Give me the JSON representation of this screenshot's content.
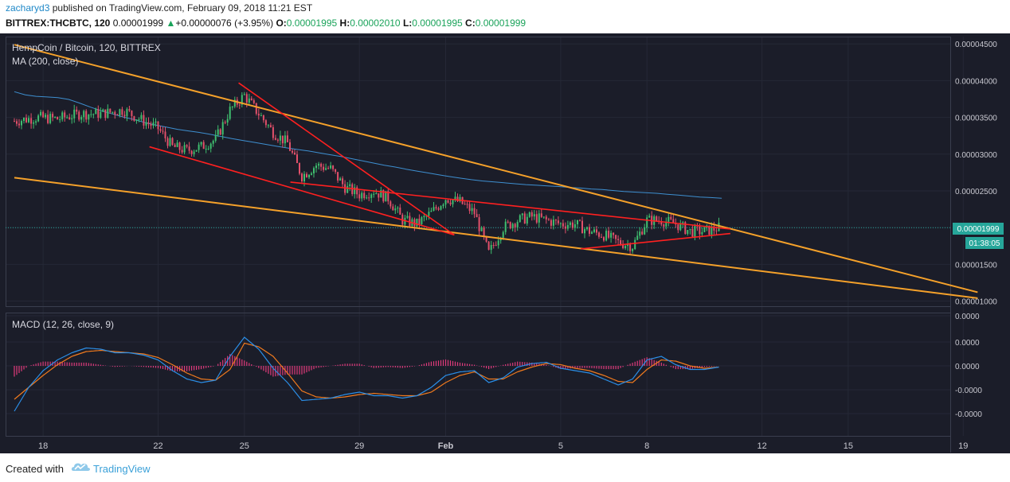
{
  "header": {
    "user": "zacharyd3",
    "published": "published on TradingView.com, February 09, 2018 11:21 EST",
    "symbol": "BITTREX:THCBTC, 120",
    "last": "0.00001999",
    "change_arrow": "▲",
    "change": "+0.00000076 (+3.95%)",
    "o_label": "O:",
    "o": "0.00001995",
    "h_label": "H:",
    "h": "0.00002010",
    "l_label": "L:",
    "l": "0.00001995",
    "c_label": "C:",
    "c": "0.00001999"
  },
  "legend": {
    "title": "HempCoin / Bitcoin, 120, BITTREX",
    "ma": "MA (200, close)",
    "macd": "MACD (12, 26, close, 9)"
  },
  "price_badge": {
    "value": "0.00001999",
    "countdown": "01:38:05"
  },
  "footer": {
    "created": "Created with",
    "brand": "TradingView"
  },
  "colors": {
    "background": "#1b1d29",
    "up": "#3fbf6f",
    "down": "#e2506a",
    "ma": "#3e8fd0",
    "trend_orange": "#f5a12a",
    "trend_red": "#ff2020",
    "macd_line": "#2b8ee6",
    "signal_line": "#f07a1e",
    "hist": "#e03a7c",
    "last_price": "#26a69a"
  },
  "chart_data": [
    {
      "type": "candlestick",
      "title": "HempCoin / Bitcoin, 120, BITTREX",
      "x_ticks": [
        "18",
        "22",
        "25",
        "29",
        "Feb",
        "5",
        "8",
        "12",
        "15",
        "19"
      ],
      "y_ticks": [
        "0.00004500",
        "0.00004000",
        "0.00003500",
        "0.00003000",
        "0.00002500",
        "0.00002000",
        "0.00001500",
        "0.00001000"
      ],
      "ylim": [
        9.3e-06,
        4.6e-05
      ],
      "last_price": 1.999e-05,
      "close_path_knots": [
        [
          17.0,
          3.45
        ],
        [
          17.8,
          3.5
        ],
        [
          18.5,
          3.48
        ],
        [
          19.3,
          3.55
        ],
        [
          20.0,
          3.55
        ],
        [
          20.8,
          3.6
        ],
        [
          21.5,
          3.45
        ],
        [
          22.0,
          3.35
        ],
        [
          22.5,
          3.1
        ],
        [
          23.0,
          3.05
        ],
        [
          23.5,
          3.1
        ],
        [
          24.0,
          3.2
        ],
        [
          24.5,
          3.6
        ],
        [
          25.0,
          3.8
        ],
        [
          25.5,
          3.55
        ],
        [
          26.0,
          3.3
        ],
        [
          26.5,
          3.15
        ],
        [
          27.0,
          2.7
        ],
        [
          27.5,
          2.85
        ],
        [
          28.0,
          2.8
        ],
        [
          28.5,
          2.55
        ],
        [
          29.0,
          2.45
        ],
        [
          29.5,
          2.5
        ],
        [
          30.0,
          2.4
        ],
        [
          30.5,
          2.1
        ],
        [
          31.0,
          2.05
        ],
        [
          31.5,
          2.2
        ],
        [
          32.0,
          2.4
        ],
        [
          32.5,
          2.35
        ],
        [
          33.0,
          2.2
        ],
        [
          33.5,
          1.65
        ],
        [
          34.0,
          2.0
        ],
        [
          34.5,
          2.1
        ],
        [
          35.0,
          2.15
        ],
        [
          35.5,
          2.1
        ],
        [
          36.0,
          2.05
        ],
        [
          36.5,
          2.05
        ],
        [
          37.0,
          1.95
        ],
        [
          37.5,
          1.9
        ],
        [
          38.0,
          1.8
        ],
        [
          38.5,
          1.75
        ],
        [
          39.0,
          2.1
        ],
        [
          39.5,
          2.1
        ],
        [
          40.0,
          2.05
        ],
        [
          40.5,
          1.95
        ],
        [
          41.0,
          1.95
        ],
        [
          41.5,
          2.0
        ]
      ],
      "ma_200": [
        [
          17.0,
          3.85
        ],
        [
          19.0,
          3.75
        ],
        [
          21.0,
          3.7
        ],
        [
          23.0,
          3.68
        ],
        [
          24.0,
          3.66
        ],
        [
          25.0,
          3.6
        ],
        [
          26.0,
          3.48
        ],
        [
          27.0,
          3.35
        ],
        [
          28.0,
          3.23
        ],
        [
          29.0,
          3.13
        ],
        [
          30.0,
          3.03
        ],
        [
          31.0,
          2.95
        ],
        [
          32.0,
          2.85
        ],
        [
          33.0,
          2.77
        ],
        [
          34.0,
          2.7
        ],
        [
          35.0,
          2.63
        ],
        [
          36.0,
          2.58
        ],
        [
          37.0,
          2.53
        ],
        [
          38.0,
          2.47
        ],
        [
          39.0,
          2.4
        ],
        [
          40.0,
          2.33
        ],
        [
          41.0,
          2.27
        ],
        [
          42.0,
          2.21
        ],
        [
          43.0,
          2.15
        ],
        [
          44.0,
          2.09
        ],
        [
          45.0,
          2.03
        ],
        [
          46.0,
          1.98
        ],
        [
          47.0,
          1.93
        ],
        [
          48.0,
          1.87
        ],
        [
          49.0,
          1.81
        ],
        [
          50.0,
          1.75
        ],
        [
          51.0,
          1.68
        ],
        [
          52.0,
          1.61
        ],
        [
          53.0,
          1.54
        ],
        [
          54.0,
          1.47
        ],
        [
          55.0,
          1.41
        ],
        [
          56.0,
          1.34
        ],
        [
          57.0,
          1.28
        ],
        [
          58.0,
          1.22
        ],
        [
          59.0,
          1.16
        ],
        [
          60.0,
          1.1
        ],
        [
          61.0,
          1.05
        ],
        [
          62.0,
          1.0
        ],
        [
          63.0,
          0.96
        ],
        [
          64.0,
          0.93
        ],
        [
          65.0,
          0.9
        ],
        [
          66.0,
          0.87
        ],
        [
          67.0,
          0.84
        ],
        [
          68.0,
          0.82
        ],
        [
          69.0,
          0.8
        ],
        [
          70.0,
          0.78
        ],
        [
          71.0,
          0.75
        ],
        [
          72.0,
          0.73
        ],
        [
          73.0,
          0.7
        ],
        [
          74.0,
          0.68
        ],
        [
          75.0,
          0.65
        ],
        [
          76.0,
          0.62
        ],
        [
          77.0,
          0.6
        ],
        [
          78.0,
          0.58
        ],
        [
          79.0,
          0.56
        ],
        [
          80.0,
          0.53
        ],
        [
          81.0,
          0.5
        ],
        [
          82.0,
          0.47
        ],
        [
          83.0,
          0.44
        ],
        [
          84.0,
          0.42
        ],
        [
          85.0,
          0.4
        ]
      ],
      "trendlines_orange": [
        [
          [
            17.0,
            4.49
          ],
          [
            50.5,
            1.12
          ]
        ],
        [
          [
            17.0,
            2.68
          ],
          [
            50.5,
            1.04
          ]
        ]
      ],
      "trendlines_red": [
        [
          [
            21.7,
            3.1
          ],
          [
            32.3,
            1.9
          ]
        ],
        [
          [
            24.8,
            3.97
          ],
          [
            32.3,
            1.9
          ]
        ],
        [
          [
            26.6,
            2.62
          ],
          [
            41.9,
            1.98
          ]
        ],
        [
          [
            36.7,
            1.71
          ],
          [
            41.9,
            1.92
          ]
        ]
      ]
    },
    {
      "type": "line",
      "title": "MACD (12, 26, close, 9)",
      "y_ticks": [
        "0.0000",
        "0.0000",
        "0.0000",
        "-0.0000",
        "-0.0000"
      ],
      "macd_knots": [
        [
          17.0,
          -1.9
        ],
        [
          17.5,
          -0.9
        ],
        [
          18.0,
          -0.2
        ],
        [
          18.5,
          0.25
        ],
        [
          19.0,
          0.55
        ],
        [
          19.5,
          0.75
        ],
        [
          20.0,
          0.7
        ],
        [
          20.5,
          0.55
        ],
        [
          21.0,
          0.55
        ],
        [
          21.5,
          0.45
        ],
        [
          22.0,
          0.25
        ],
        [
          22.5,
          -0.2
        ],
        [
          23.0,
          -0.55
        ],
        [
          23.5,
          -0.7
        ],
        [
          24.0,
          -0.6
        ],
        [
          24.5,
          0.4
        ],
        [
          25.0,
          1.2
        ],
        [
          25.5,
          0.7
        ],
        [
          26.0,
          -0.1
        ],
        [
          26.5,
          -0.7
        ],
        [
          27.0,
          -1.45
        ],
        [
          27.5,
          -1.4
        ],
        [
          28.0,
          -1.35
        ],
        [
          28.5,
          -1.2
        ],
        [
          29.0,
          -1.1
        ],
        [
          29.5,
          -1.25
        ],
        [
          30.0,
          -1.25
        ],
        [
          30.5,
          -1.35
        ],
        [
          31.0,
          -1.25
        ],
        [
          31.5,
          -0.9
        ],
        [
          32.0,
          -0.4
        ],
        [
          32.5,
          -0.25
        ],
        [
          33.0,
          -0.2
        ],
        [
          33.5,
          -0.7
        ],
        [
          34.0,
          -0.5
        ],
        [
          34.5,
          -0.05
        ],
        [
          35.0,
          0.1
        ],
        [
          35.5,
          0.15
        ],
        [
          36.0,
          -0.1
        ],
        [
          36.5,
          -0.2
        ],
        [
          37.0,
          -0.3
        ],
        [
          37.5,
          -0.55
        ],
        [
          38.0,
          -0.8
        ],
        [
          38.5,
          -0.55
        ],
        [
          39.0,
          0.25
        ],
        [
          39.5,
          0.4
        ],
        [
          40.0,
          0.05
        ],
        [
          40.5,
          -0.15
        ],
        [
          41.0,
          -0.15
        ],
        [
          41.5,
          -0.05
        ]
      ],
      "signal_knots": [
        [
          17.0,
          -1.4
        ],
        [
          17.5,
          -0.9
        ],
        [
          18.0,
          -0.4
        ],
        [
          18.5,
          0.05
        ],
        [
          19.0,
          0.4
        ],
        [
          19.5,
          0.6
        ],
        [
          20.0,
          0.65
        ],
        [
          20.5,
          0.6
        ],
        [
          21.0,
          0.55
        ],
        [
          21.5,
          0.5
        ],
        [
          22.0,
          0.35
        ],
        [
          22.5,
          0.05
        ],
        [
          23.0,
          -0.3
        ],
        [
          23.5,
          -0.55
        ],
        [
          24.0,
          -0.6
        ],
        [
          24.5,
          -0.15
        ],
        [
          25.0,
          0.95
        ],
        [
          25.5,
          0.8
        ],
        [
          26.0,
          0.4
        ],
        [
          26.5,
          -0.3
        ],
        [
          27.0,
          -1.05
        ],
        [
          27.5,
          -1.3
        ],
        [
          28.0,
          -1.35
        ],
        [
          28.5,
          -1.3
        ],
        [
          29.0,
          -1.2
        ],
        [
          29.5,
          -1.15
        ],
        [
          30.0,
          -1.2
        ],
        [
          30.5,
          -1.25
        ],
        [
          31.0,
          -1.25
        ],
        [
          31.5,
          -1.1
        ],
        [
          32.0,
          -0.7
        ],
        [
          32.5,
          -0.4
        ],
        [
          33.0,
          -0.25
        ],
        [
          33.5,
          -0.55
        ],
        [
          34.0,
          -0.55
        ],
        [
          34.5,
          -0.25
        ],
        [
          35.0,
          -0.05
        ],
        [
          35.5,
          0.1
        ],
        [
          36.0,
          0.05
        ],
        [
          36.5,
          -0.1
        ],
        [
          37.0,
          -0.2
        ],
        [
          37.5,
          -0.4
        ],
        [
          38.0,
          -0.65
        ],
        [
          38.5,
          -0.7
        ],
        [
          39.0,
          -0.15
        ],
        [
          39.5,
          0.25
        ],
        [
          40.0,
          0.2
        ],
        [
          40.5,
          0.0
        ],
        [
          41.0,
          -0.1
        ],
        [
          41.5,
          -0.05
        ]
      ]
    }
  ]
}
